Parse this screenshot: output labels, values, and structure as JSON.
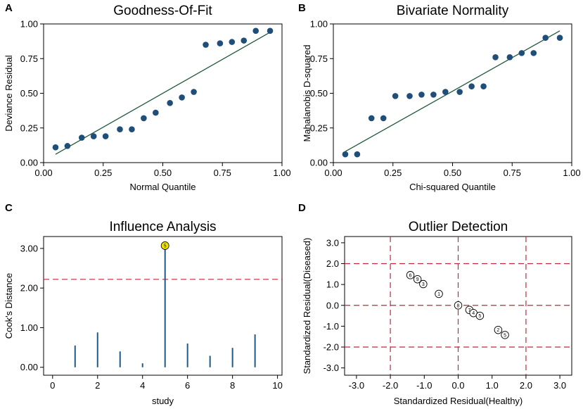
{
  "colors": {
    "marker": "#1f4e79",
    "fit_line": "#1e5b3a",
    "needle": "#1f5a8b",
    "ref_line": "#c0283c",
    "highlight": "#f2e400"
  },
  "chart_data": [
    {
      "panel": "A",
      "type": "scatter",
      "title": "Goodness-Of-Fit",
      "xlabel": "Normal Quantile",
      "ylabel": "Deviance Residual",
      "xlim": [
        0,
        1
      ],
      "ylim": [
        0,
        1
      ],
      "xticks": [
        "0.00",
        "0.25",
        "0.50",
        "0.75",
        "1.00"
      ],
      "yticks": [
        "0.00",
        "0.25",
        "0.50",
        "0.75",
        "1.00"
      ],
      "points": [
        [
          0.05,
          0.11
        ],
        [
          0.1,
          0.12
        ],
        [
          0.16,
          0.18
        ],
        [
          0.21,
          0.19
        ],
        [
          0.26,
          0.19
        ],
        [
          0.32,
          0.24
        ],
        [
          0.37,
          0.24
        ],
        [
          0.42,
          0.32
        ],
        [
          0.47,
          0.36
        ],
        [
          0.53,
          0.43
        ],
        [
          0.58,
          0.47
        ],
        [
          0.63,
          0.51
        ],
        [
          0.68,
          0.85
        ],
        [
          0.74,
          0.86
        ],
        [
          0.79,
          0.87
        ],
        [
          0.84,
          0.88
        ],
        [
          0.89,
          0.95
        ],
        [
          0.95,
          0.95
        ]
      ],
      "fit_line": [
        [
          0.05,
          0.06
        ],
        [
          0.95,
          0.94
        ]
      ]
    },
    {
      "panel": "B",
      "type": "scatter",
      "title": "Bivariate Normality",
      "xlabel": "Chi-squared Quantile",
      "ylabel": "Mahalanobis D-squared",
      "xlim": [
        0,
        1
      ],
      "ylim": [
        0,
        1
      ],
      "xticks": [
        "0.00",
        "0.25",
        "0.50",
        "0.75",
        "1.00"
      ],
      "yticks": [
        "0.00",
        "0.25",
        "0.50",
        "0.75",
        "1.00"
      ],
      "points": [
        [
          0.05,
          0.06
        ],
        [
          0.1,
          0.06
        ],
        [
          0.16,
          0.32
        ],
        [
          0.21,
          0.32
        ],
        [
          0.26,
          0.48
        ],
        [
          0.32,
          0.48
        ],
        [
          0.37,
          0.49
        ],
        [
          0.42,
          0.49
        ],
        [
          0.47,
          0.51
        ],
        [
          0.53,
          0.51
        ],
        [
          0.58,
          0.55
        ],
        [
          0.63,
          0.55
        ],
        [
          0.68,
          0.76
        ],
        [
          0.74,
          0.76
        ],
        [
          0.79,
          0.79
        ],
        [
          0.84,
          0.79
        ],
        [
          0.89,
          0.9
        ],
        [
          0.95,
          0.9
        ]
      ],
      "fit_line": [
        [
          0.05,
          0.08
        ],
        [
          0.95,
          0.95
        ]
      ]
    },
    {
      "panel": "C",
      "type": "bar",
      "title": "Influence Analysis",
      "xlabel": "study",
      "ylabel": "Cook's Distance",
      "xlim": [
        -0.4,
        10.2
      ],
      "ylim": [
        -0.2,
        3.3
      ],
      "xticks": [
        "0",
        "2",
        "4",
        "6",
        "8",
        "10"
      ],
      "yticks": [
        "0.00",
        "1.00",
        "2.00",
        "3.00"
      ],
      "categories": [
        1,
        2,
        3,
        4,
        5,
        6,
        7,
        8,
        9
      ],
      "values": [
        0.55,
        0.88,
        0.4,
        0.1,
        3.07,
        0.6,
        0.29,
        0.49,
        0.83
      ],
      "threshold": 2.22,
      "highlight_label": "5",
      "highlight_study": 5
    },
    {
      "panel": "D",
      "type": "scatter",
      "title": "Outlier Detection",
      "xlabel": "Standardized Residual(Healthy)",
      "ylabel": "Standardized Residual(Diseased)",
      "xlim": [
        -3.35,
        3.35
      ],
      "ylim": [
        -3.35,
        3.3
      ],
      "xticks": [
        "-3.0",
        "-2.0",
        "-1.0",
        "0.0",
        "1.0",
        "2.0",
        "3.0"
      ],
      "yticks": [
        "-3.0",
        "-2.0",
        "-1.0",
        "0.0",
        "1.0",
        "2.0",
        "3.0"
      ],
      "ref_x": [
        -2,
        0,
        2
      ],
      "ref_y": [
        -2,
        0,
        2
      ],
      "points": [
        {
          "label": "6",
          "x": -1.41,
          "y": 1.45
        },
        {
          "label": "9",
          "x": -1.2,
          "y": 1.25
        },
        {
          "label": "3",
          "x": -1.03,
          "y": 1.02
        },
        {
          "label": "1",
          "x": -0.57,
          "y": 0.55
        },
        {
          "label": "8",
          "x": 0.0,
          "y": 0.0
        },
        {
          "label": "7",
          "x": 0.33,
          "y": -0.22
        },
        {
          "label": "4",
          "x": 0.45,
          "y": -0.37
        },
        {
          "label": "5",
          "x": 0.64,
          "y": -0.5
        },
        {
          "label": "2",
          "x": 1.18,
          "y": -1.18
        },
        {
          "label": "5",
          "x": 1.38,
          "y": -1.42
        }
      ]
    }
  ]
}
